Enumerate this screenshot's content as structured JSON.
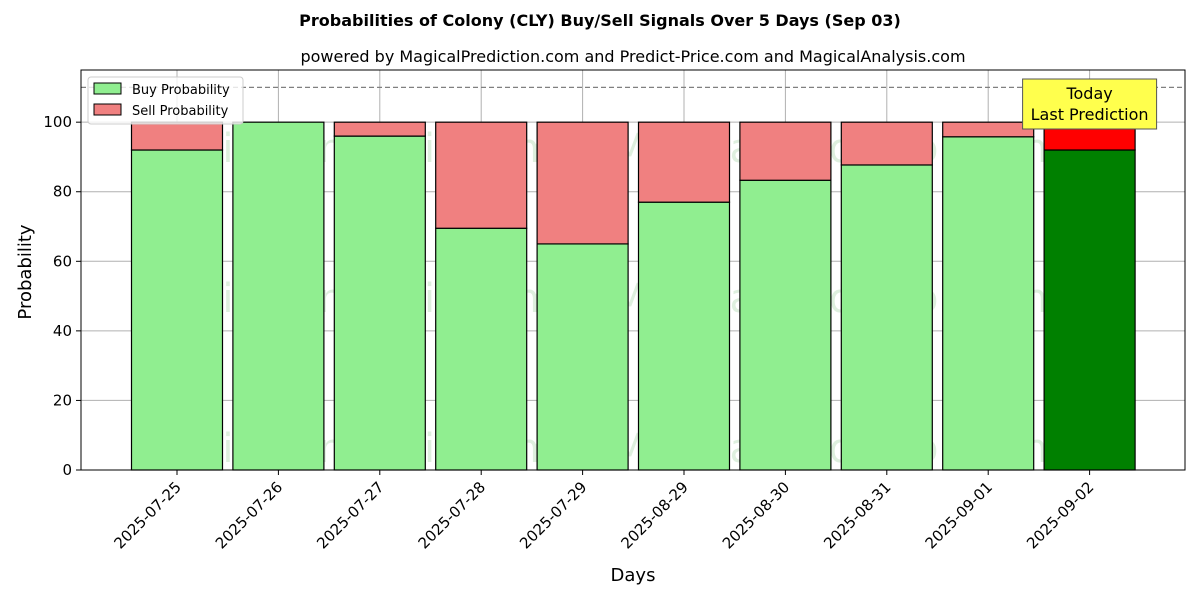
{
  "chart_data": {
    "type": "bar",
    "stacked": true,
    "title": "Probabilities of Colony (CLY) Buy/Sell Signals Over 5 Days (Sep 03)",
    "subtitle": "powered by MagicalPrediction.com and Predict-Price.com and MagicalAnalysis.com",
    "xlabel": "Days",
    "ylabel": "Probability",
    "ylim": [
      0,
      115
    ],
    "yticks": [
      0,
      20,
      40,
      60,
      80,
      100
    ],
    "reference_line": 110,
    "grid": true,
    "legend_position": "top-left",
    "categories": [
      "2025-07-25",
      "2025-07-26",
      "2025-07-27",
      "2025-07-28",
      "2025-07-29",
      "2025-08-29",
      "2025-08-30",
      "2025-08-31",
      "2025-09-01",
      "2025-09-02"
    ],
    "series": [
      {
        "name": "Buy Probability",
        "values": [
          92,
          100,
          96,
          69.5,
          65,
          77,
          83.3,
          87.7,
          95.8,
          92
        ]
      },
      {
        "name": "Sell Probability",
        "values": [
          8,
          0,
          4,
          30.5,
          35,
          23,
          16.7,
          12.3,
          4.2,
          8
        ]
      }
    ],
    "colors": {
      "buy": "#90ee90",
      "sell": "#f08080",
      "buy_highlight": "#008000",
      "sell_highlight": "#ff0000",
      "annotation_bg": "#ffff4d"
    },
    "highlight_category": "2025-09-02",
    "annotation": {
      "line1": "Today",
      "line2": "Last Prediction"
    },
    "watermarks": [
      "MagicalAnalysis.com",
      "MagicalPrediction.com"
    ]
  }
}
